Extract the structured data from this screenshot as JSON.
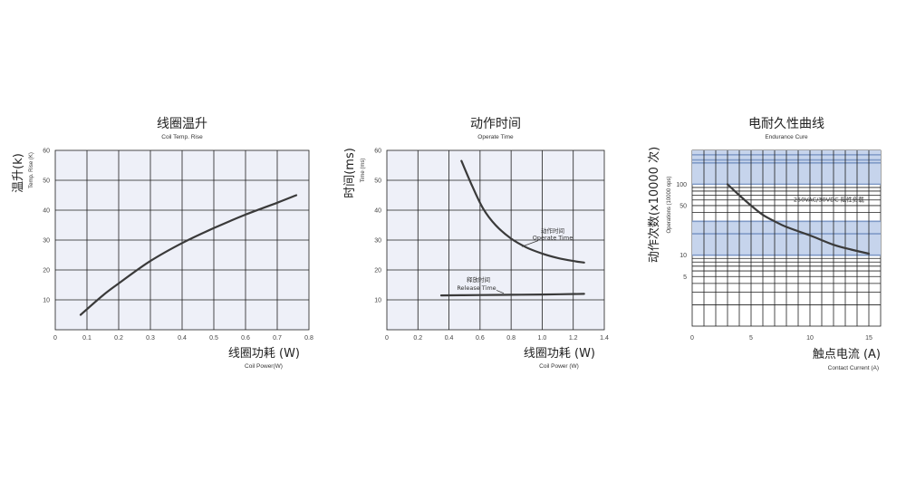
{
  "chart_data": [
    {
      "type": "line",
      "title": "线圈温升",
      "subtitle": "Coil Temp. Rise",
      "xlabel": "线圈功耗  (W)",
      "xlabel_en": "Coil Power(W)",
      "ylabel": "温升(k)",
      "ylabel_en": "Temp. Rise  (K)",
      "xlim": [
        0,
        0.8
      ],
      "ylim": [
        0,
        60
      ],
      "xticks": [
        "0",
        "0.1",
        "0.2",
        "0.3",
        "0.4",
        "0.5",
        "0.6",
        "0.7",
        "0.8"
      ],
      "yticks": [
        "10",
        "20",
        "30",
        "40",
        "50",
        "60"
      ],
      "grid": true,
      "series": [
        {
          "x": [
            0.08,
            0.15,
            0.2,
            0.3,
            0.4,
            0.5,
            0.6,
            0.7,
            0.76
          ],
          "y": [
            5,
            11.5,
            15.5,
            23,
            29,
            34,
            38.5,
            42.5,
            45
          ]
        }
      ]
    },
    {
      "type": "line",
      "title": "动作时间",
      "subtitle": "Operate Time",
      "xlabel": "线圈功耗  (W)",
      "xlabel_en": "Coil Power (W)",
      "ylabel": "时间(ms)",
      "ylabel_en": "Time  (ms)",
      "xlim": [
        0,
        1.4
      ],
      "ylim": [
        0,
        60
      ],
      "xticks": [
        "0",
        "0.2",
        "0.4",
        "0.6",
        "0.8",
        "1.0",
        "1.2",
        "1.4"
      ],
      "yticks": [
        "10",
        "20",
        "30",
        "40",
        "50",
        "60"
      ],
      "grid": true,
      "series": [
        {
          "x": [
            0.48,
            0.55,
            0.62,
            0.7,
            0.8,
            0.9,
            1.0,
            1.1,
            1.2,
            1.27
          ],
          "y": [
            56.5,
            48,
            40.5,
            35,
            30.5,
            27.5,
            25.5,
            24,
            23,
            22.5
          ]
        },
        {
          "x": [
            0.35,
            0.6,
            0.8,
            1.0,
            1.27
          ],
          "y": [
            11.5,
            11.6,
            11.7,
            11.8,
            12
          ]
        }
      ],
      "annotations": [
        {
          "text": "动作时间",
          "text_en": "Operate Time"
        },
        {
          "text": "释放时间",
          "text_en": "Release Time"
        }
      ]
    },
    {
      "type": "line",
      "title": "电耐久性曲线",
      "subtitle": "Endurance Cure",
      "xlabel": "触点电流  (A)",
      "xlabel_en": "Contact Current  (A)",
      "ylabel": "动作次数(x10000 次)",
      "ylabel_en": "Operations (10000 ops)",
      "xscale": "linear",
      "yscale": "log",
      "xlim": [
        0,
        16
      ],
      "ylim": [
        1,
        300
      ],
      "xticks": [
        "0",
        "5",
        "10",
        "15"
      ],
      "yticks": [
        "5",
        "10",
        "50",
        "100"
      ],
      "grid": true,
      "series": [
        {
          "x": [
            3,
            4,
            5,
            6,
            7,
            8,
            10,
            12,
            13.5,
            15
          ],
          "y": [
            100,
            70,
            50,
            37,
            30,
            25,
            19,
            14,
            12,
            10.5
          ]
        }
      ],
      "annotations": [
        {
          "text": "250VAC/30VDC 阻性负载"
        }
      ]
    }
  ],
  "style": {
    "plot_bg": "#eef0f8",
    "grid": "#1f1f1f",
    "curve": "#3a3a3a",
    "band_dark": "#7f9ac7",
    "band_light": "#c6d4ec"
  }
}
